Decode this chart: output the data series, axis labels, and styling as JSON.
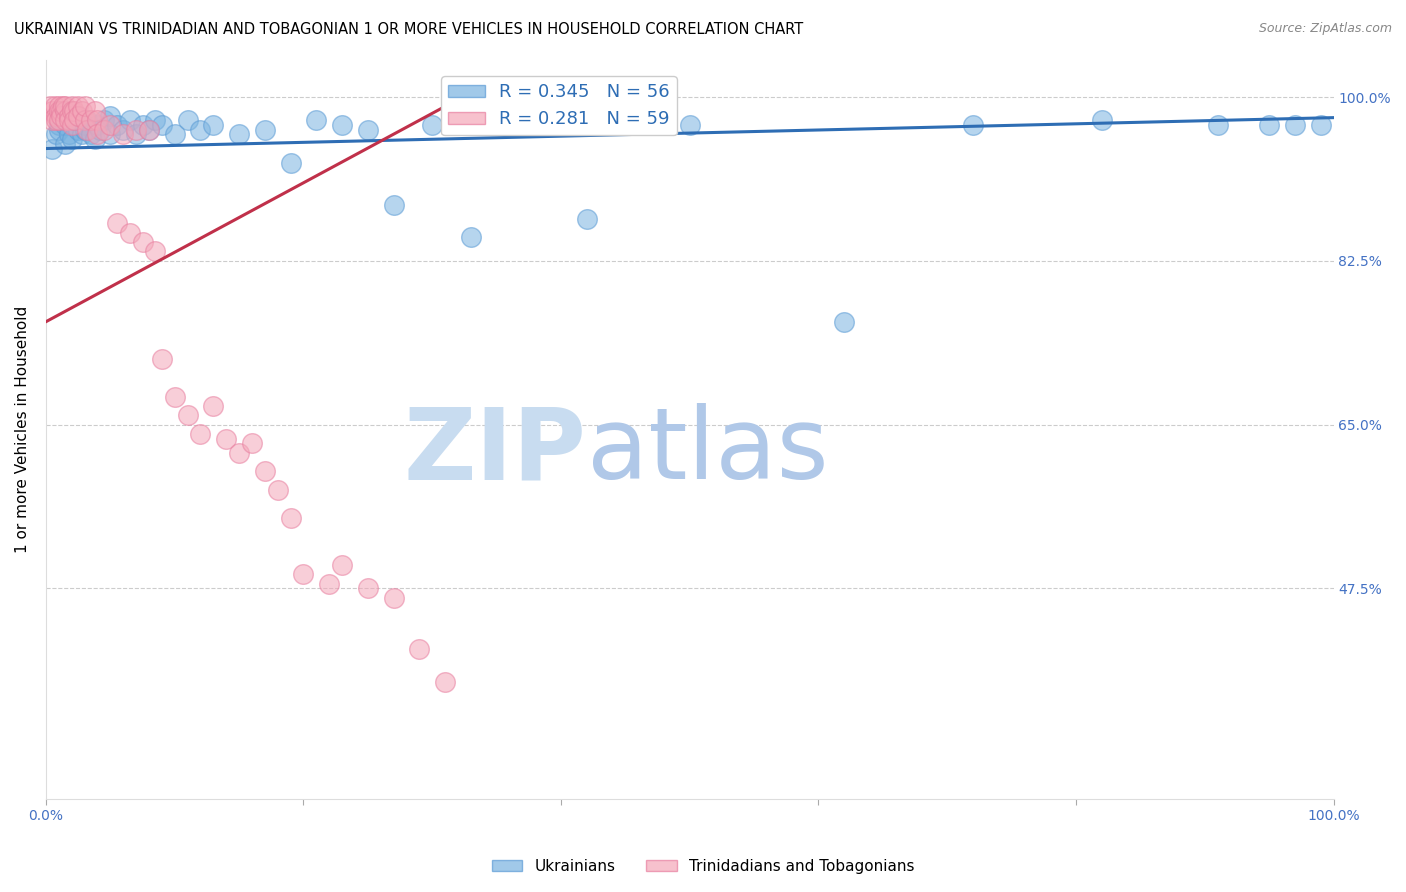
{
  "title": "UKRAINIAN VS TRINIDADIAN AND TOBAGONIAN 1 OR MORE VEHICLES IN HOUSEHOLD CORRELATION CHART",
  "source": "Source: ZipAtlas.com",
  "ylabel": "1 or more Vehicles in Household",
  "xlim": [
    0.0,
    1.0
  ],
  "ylim": [
    0.25,
    1.04
  ],
  "yticks": [
    0.475,
    0.65,
    0.825,
    1.0
  ],
  "yticklabels": [
    "47.5%",
    "65.0%",
    "82.5%",
    "100.0%"
  ],
  "legend_r_blue": "R = 0.345",
  "legend_n_blue": "N = 56",
  "legend_r_pink": "R = 0.281",
  "legend_n_pink": "N = 59",
  "blue_scatter_x": [
    0.005,
    0.008,
    0.01,
    0.01,
    0.012,
    0.015,
    0.015,
    0.018,
    0.02,
    0.02,
    0.022,
    0.025,
    0.025,
    0.028,
    0.03,
    0.03,
    0.032,
    0.035,
    0.038,
    0.04,
    0.042,
    0.045,
    0.05,
    0.05,
    0.055,
    0.06,
    0.065,
    0.07,
    0.075,
    0.08,
    0.085,
    0.09,
    0.1,
    0.11,
    0.12,
    0.13,
    0.15,
    0.17,
    0.19,
    0.21,
    0.23,
    0.25,
    0.27,
    0.3,
    0.33,
    0.35,
    0.38,
    0.42,
    0.5,
    0.62,
    0.72,
    0.82,
    0.91,
    0.95,
    0.97,
    0.99
  ],
  "blue_scatter_y": [
    0.945,
    0.96,
    0.97,
    0.965,
    0.975,
    0.95,
    0.97,
    0.96,
    0.955,
    0.975,
    0.97,
    0.965,
    0.98,
    0.96,
    0.97,
    0.965,
    0.975,
    0.96,
    0.955,
    0.97,
    0.965,
    0.975,
    0.96,
    0.98,
    0.97,
    0.965,
    0.975,
    0.96,
    0.97,
    0.965,
    0.975,
    0.97,
    0.96,
    0.975,
    0.965,
    0.97,
    0.96,
    0.965,
    0.93,
    0.975,
    0.97,
    0.965,
    0.885,
    0.97,
    0.85,
    0.97,
    0.975,
    0.87,
    0.97,
    0.76,
    0.97,
    0.975,
    0.97,
    0.97,
    0.97,
    0.97
  ],
  "pink_scatter_x": [
    0.003,
    0.005,
    0.005,
    0.007,
    0.008,
    0.008,
    0.01,
    0.01,
    0.01,
    0.012,
    0.012,
    0.013,
    0.015,
    0.015,
    0.015,
    0.018,
    0.018,
    0.02,
    0.02,
    0.02,
    0.022,
    0.022,
    0.025,
    0.025,
    0.028,
    0.03,
    0.03,
    0.032,
    0.035,
    0.038,
    0.04,
    0.04,
    0.045,
    0.05,
    0.055,
    0.06,
    0.065,
    0.07,
    0.075,
    0.08,
    0.085,
    0.09,
    0.1,
    0.11,
    0.12,
    0.13,
    0.14,
    0.15,
    0.16,
    0.17,
    0.18,
    0.19,
    0.2,
    0.22,
    0.23,
    0.25,
    0.27,
    0.29,
    0.31
  ],
  "pink_scatter_y": [
    0.99,
    0.985,
    0.975,
    0.99,
    0.98,
    0.975,
    0.99,
    0.985,
    0.975,
    0.985,
    0.98,
    0.99,
    0.985,
    0.975,
    0.99,
    0.98,
    0.975,
    0.99,
    0.985,
    0.97,
    0.985,
    0.975,
    0.99,
    0.98,
    0.985,
    0.975,
    0.99,
    0.965,
    0.975,
    0.985,
    0.975,
    0.96,
    0.965,
    0.97,
    0.865,
    0.96,
    0.855,
    0.965,
    0.845,
    0.965,
    0.835,
    0.72,
    0.68,
    0.66,
    0.64,
    0.67,
    0.635,
    0.62,
    0.63,
    0.6,
    0.58,
    0.55,
    0.49,
    0.48,
    0.5,
    0.475,
    0.465,
    0.41,
    0.375
  ],
  "blue_line_x0": 0.0,
  "blue_line_x1": 1.0,
  "blue_line_y0": 0.945,
  "blue_line_y1": 0.978,
  "pink_line_x0": 0.0,
  "pink_line_x1": 0.31,
  "pink_line_y0": 0.76,
  "pink_line_y1": 0.99,
  "blue_dot_color": "#7ab3e0",
  "blue_dot_edge": "#5b9bd5",
  "pink_dot_color": "#f4a7b9",
  "pink_dot_edge": "#e87fa0",
  "blue_line_color": "#2e6db4",
  "pink_line_color": "#c0304a",
  "grid_color": "#cccccc",
  "tick_color": "#4472c4",
  "watermark_zip_color": "#c8dcf0",
  "watermark_atlas_color": "#b0c8e8",
  "bottom_legend_blue": "Ukrainians",
  "bottom_legend_pink": "Trinidadians and Tobagonians"
}
